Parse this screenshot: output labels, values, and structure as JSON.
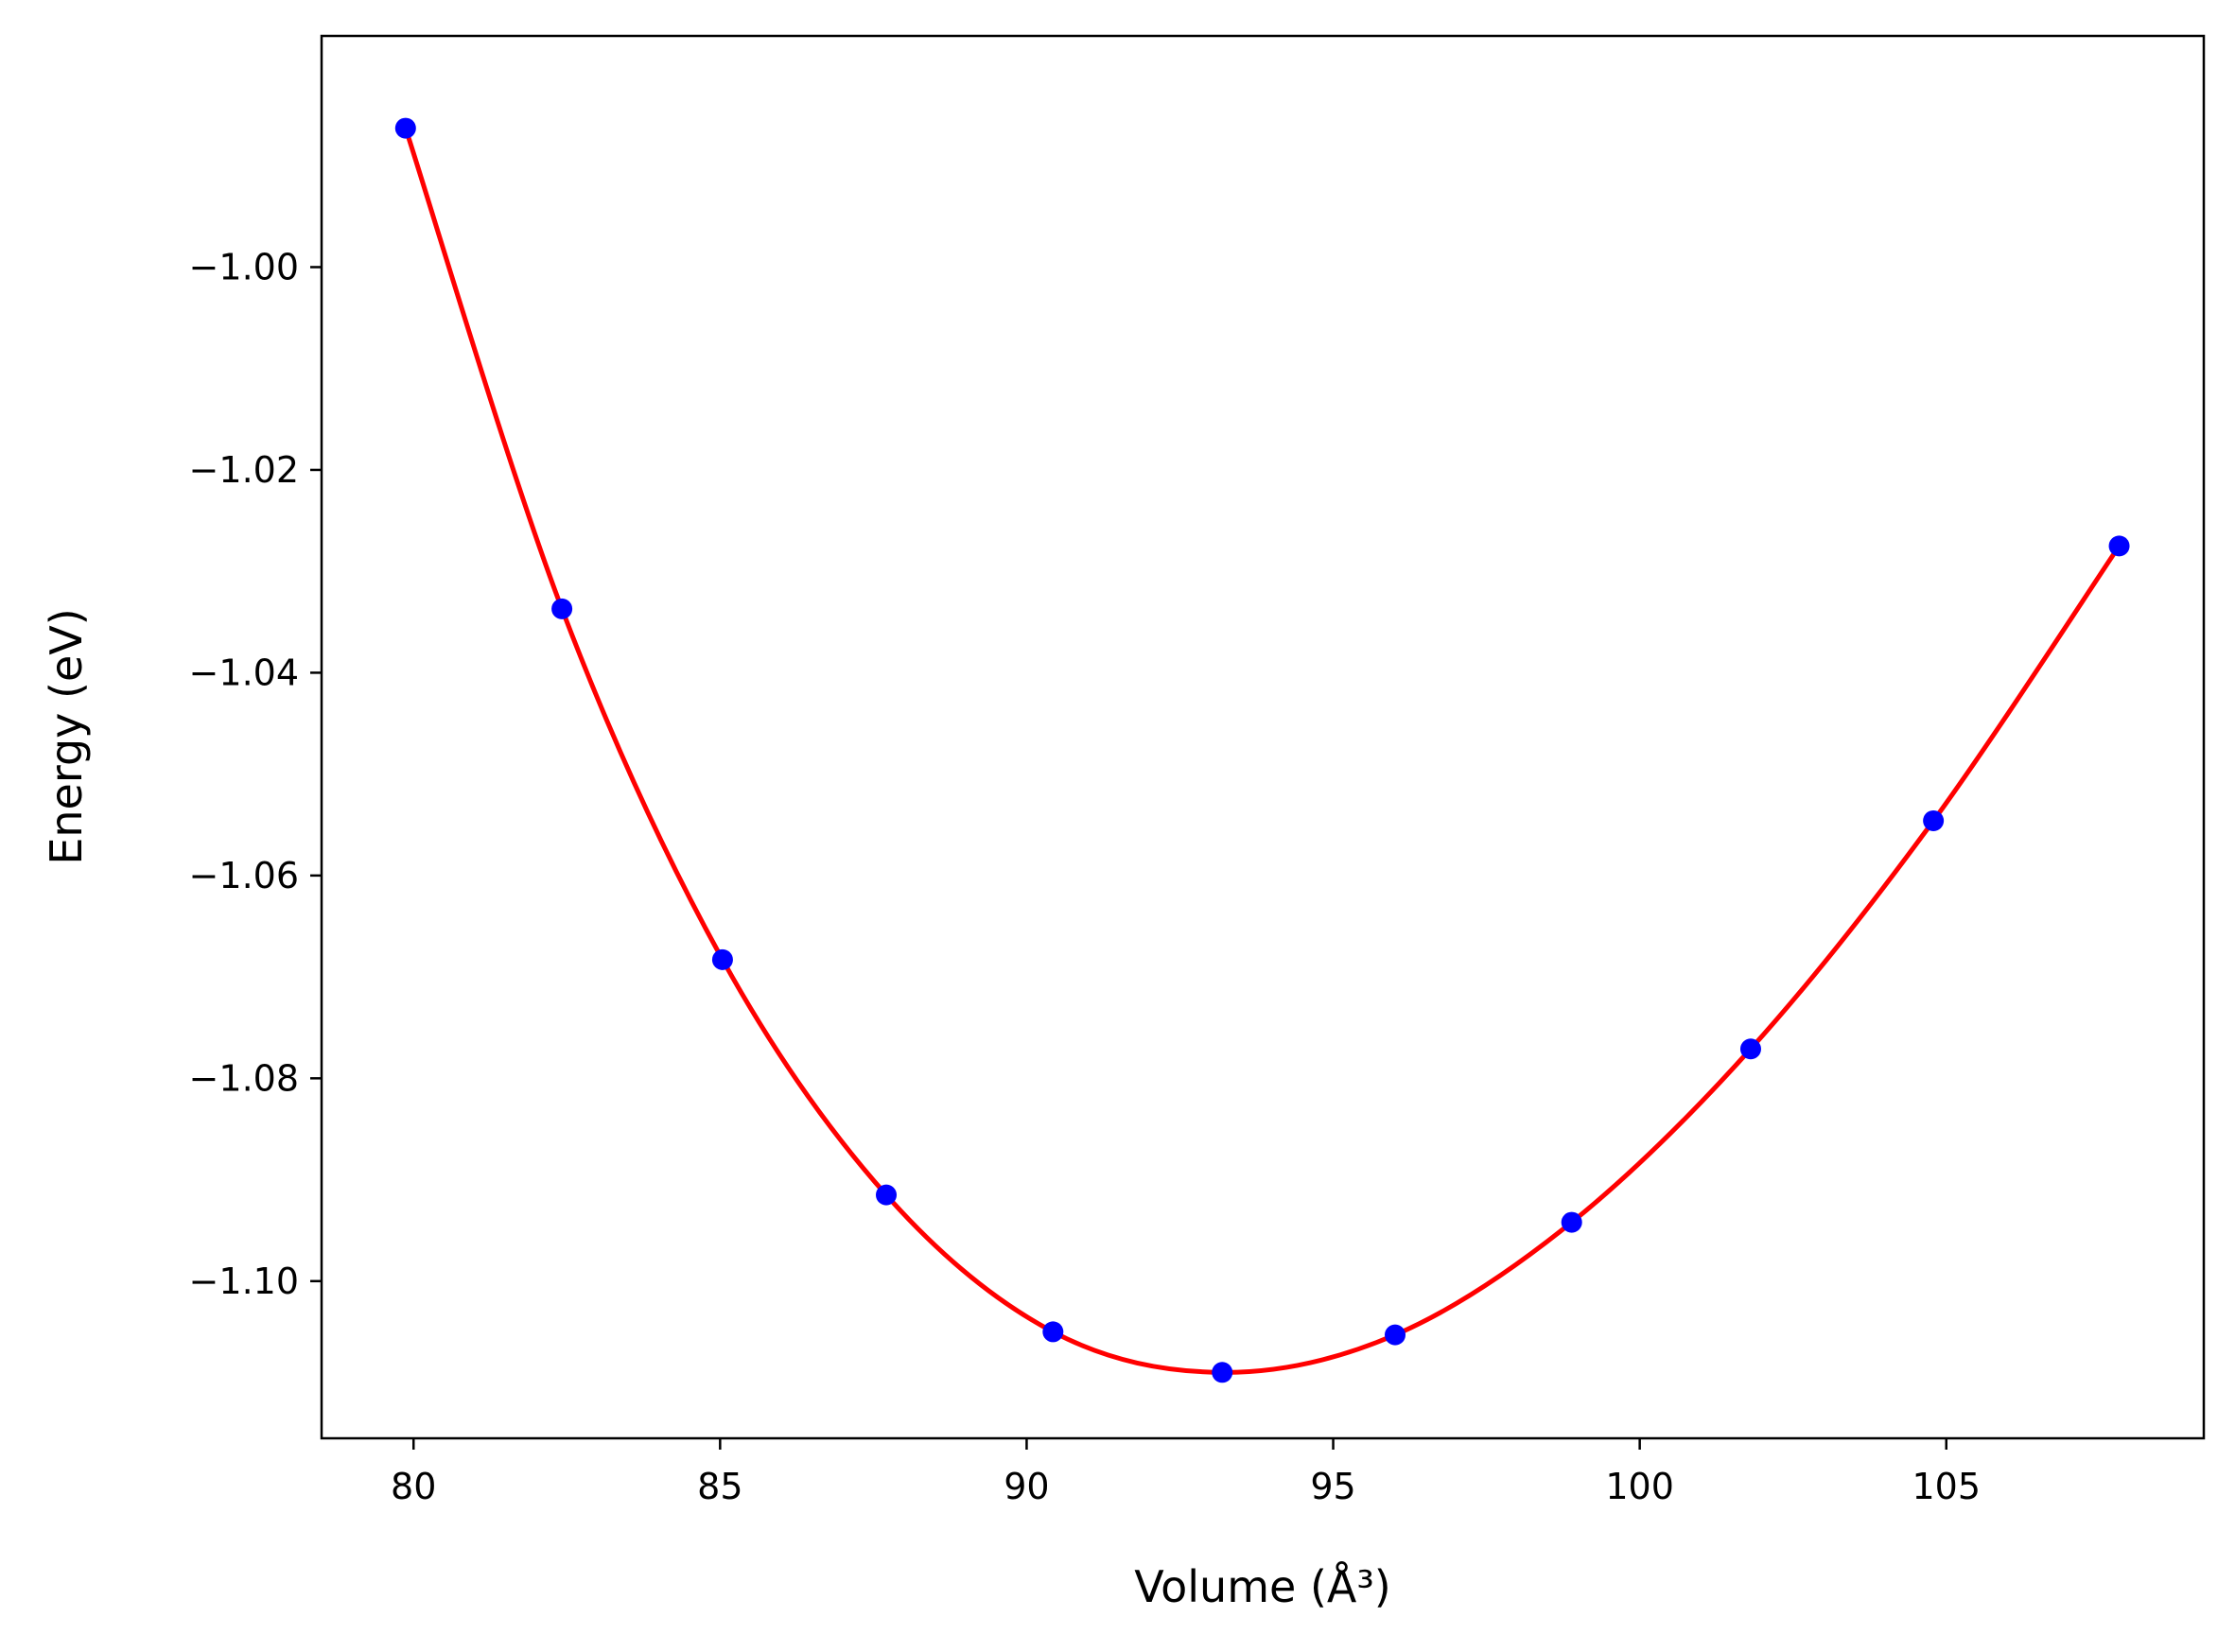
{
  "chart_data": {
    "type": "line",
    "title": "",
    "xlabel": "Volume (Å³)",
    "ylabel": "Energy (eV)",
    "xlim": [
      78.5,
      109.2
    ],
    "ylim": [
      -1.1155,
      -0.9772
    ],
    "xticks": [
      80,
      85,
      90,
      95,
      100,
      105
    ],
    "xtick_labels": [
      "80",
      "85",
      "90",
      "95",
      "100",
      "105"
    ],
    "yticks": [
      -1.0,
      -1.02,
      -1.04,
      -1.06,
      -1.08,
      -1.1
    ],
    "ytick_labels": [
      "−1.00",
      "−1.02",
      "−1.04",
      "−1.06",
      "−1.08",
      "−1.10"
    ],
    "grid": false,
    "legend": "none",
    "series": [
      {
        "kind": "scatter",
        "color": "#0000ff",
        "x": [
          79.87,
          82.42,
          85.04,
          87.71,
          90.43,
          93.19,
          96.01,
          98.89,
          101.81,
          104.79,
          107.82
        ],
        "y": [
          -0.9863,
          -1.0337,
          -1.0683,
          -1.0915,
          -1.105,
          -1.109,
          -1.1053,
          -1.0942,
          -1.0771,
          -1.0546,
          -1.0275
        ]
      },
      {
        "kind": "line",
        "color": "#ff0000",
        "fit": "equation-of-state",
        "x": [
          79.87,
          82.42,
          85.04,
          87.71,
          90.43,
          93.19,
          96.01,
          98.89,
          101.81,
          104.79,
          107.82
        ],
        "y": [
          -0.9863,
          -1.0337,
          -1.0683,
          -1.0915,
          -1.105,
          -1.109,
          -1.1053,
          -1.0942,
          -1.0771,
          -1.0546,
          -1.0275
        ]
      }
    ]
  }
}
